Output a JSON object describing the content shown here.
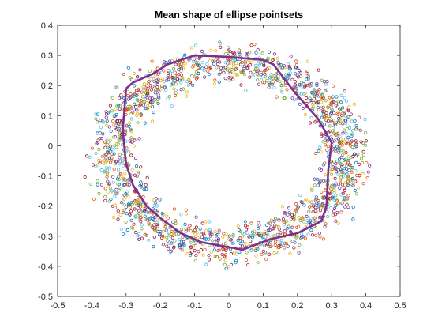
{
  "chart_data": {
    "type": "scatter",
    "title": "Mean shape of ellipse pointsets",
    "xlabel": "",
    "ylabel": "",
    "xlim": [
      -0.5,
      0.5
    ],
    "ylim": [
      -0.5,
      0.4
    ],
    "xticks": [
      -0.5,
      -0.4,
      -0.3,
      -0.2,
      -0.1,
      0,
      0.1,
      0.2,
      0.3,
      0.4,
      0.5
    ],
    "xtick_labels": [
      "-0.5",
      "-0.4",
      "-0.3",
      "-0.2",
      "-0.1",
      "0",
      "0.1",
      "0.2",
      "0.3",
      "0.4",
      "0.5"
    ],
    "yticks": [
      -0.5,
      -0.4,
      -0.3,
      -0.2,
      -0.1,
      0,
      0.1,
      0.2,
      0.3,
      0.4
    ],
    "ytick_labels": [
      "-0.5",
      "-0.4",
      "-0.3",
      "-0.2",
      "-0.1",
      "0",
      "0.1",
      "0.2",
      "0.3",
      "0.4"
    ],
    "grid": false,
    "legend": "none",
    "marker": "circle-open",
    "scatter_colors": [
      "#0072BD",
      "#D95319",
      "#EDB120",
      "#7E2F8E",
      "#77AC30",
      "#4DBEEE",
      "#A2142F"
    ],
    "point_cloud": {
      "description_shape": "elliptical annulus",
      "center": [
        0.0,
        -0.03
      ],
      "outer_semi_axes": [
        0.42,
        0.37
      ],
      "inner_semi_axes": [
        0.22,
        0.2
      ],
      "approx_point_count": 1800
    },
    "series": [
      {
        "type": "line",
        "color": "#7E2F8E",
        "x": [
          -0.3,
          -0.28,
          -0.22,
          -0.18,
          -0.1,
          0.0,
          0.1,
          0.13,
          0.19,
          0.26,
          0.3,
          0.29,
          0.285,
          0.27,
          0.2,
          0.12,
          0.04,
          -0.08,
          -0.14,
          -0.2,
          -0.24,
          -0.28,
          -0.3,
          -0.31,
          -0.3
        ],
        "y": [
          0.19,
          0.21,
          0.24,
          0.27,
          0.3,
          0.295,
          0.285,
          0.27,
          0.18,
          0.09,
          0.01,
          -0.08,
          -0.2,
          -0.25,
          -0.29,
          -0.31,
          -0.345,
          -0.32,
          -0.29,
          -0.24,
          -0.2,
          -0.13,
          -0.06,
          0.05,
          0.19
        ]
      }
    ]
  }
}
